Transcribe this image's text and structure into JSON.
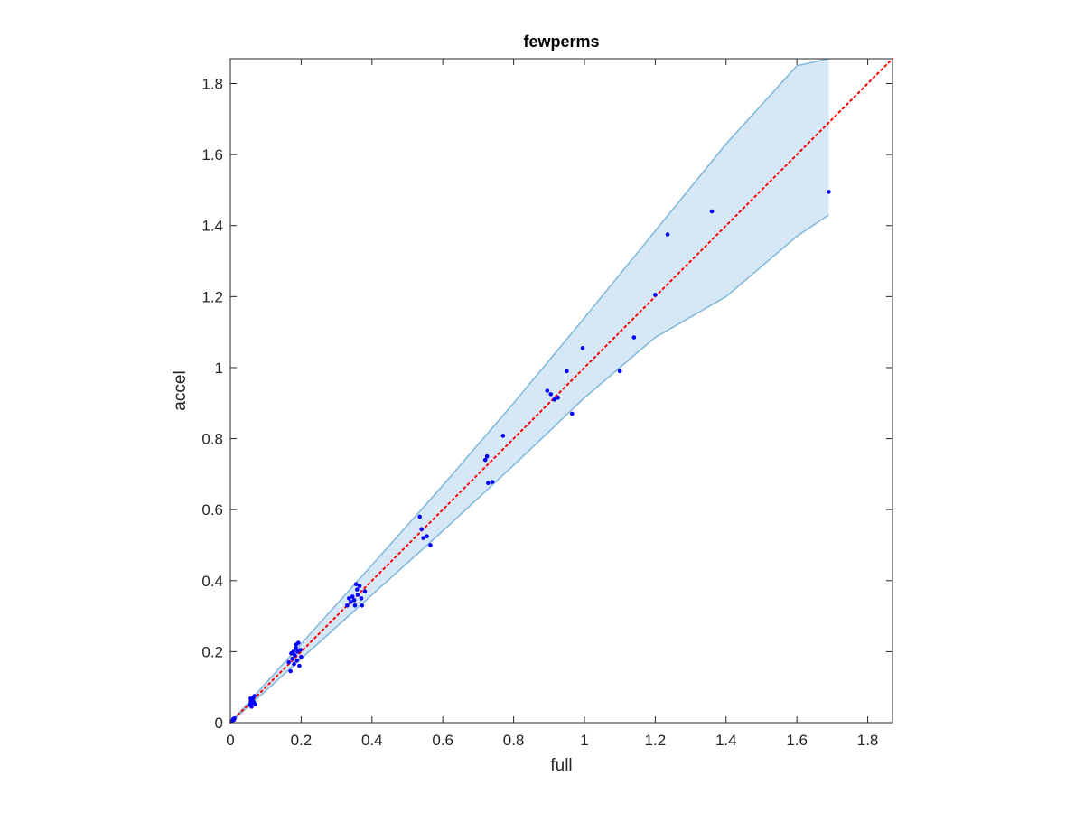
{
  "chart_data": {
    "type": "scatter",
    "title": "fewperms",
    "xlabel": "full",
    "ylabel": "accel",
    "xlim": [
      0,
      1.87
    ],
    "ylim": [
      0,
      1.87
    ],
    "xticks": [
      "0",
      "0.2",
      "0.4",
      "0.6",
      "0.8",
      "1",
      "1.2",
      "1.4",
      "1.6",
      "1.8"
    ],
    "yticks": [
      "0",
      "0.2",
      "0.4",
      "0.6",
      "0.8",
      "1",
      "1.2",
      "1.4",
      "1.6",
      "1.8"
    ],
    "grid": false,
    "reference_line": {
      "style": "dotted",
      "color": "#ff0000",
      "from": [
        0,
        0
      ],
      "to": [
        1.87,
        1.87
      ]
    },
    "band": {
      "color": "#d6e8f5",
      "edge_color": "#86b9dc",
      "upper": [
        [
          0,
          0
        ],
        [
          0.2,
          0.222
        ],
        [
          0.4,
          0.444
        ],
        [
          0.6,
          0.668
        ],
        [
          0.8,
          0.9
        ],
        [
          1.0,
          1.14
        ],
        [
          1.2,
          1.385
        ],
        [
          1.4,
          1.63
        ],
        [
          1.6,
          1.85
        ],
        [
          1.69,
          1.87
        ]
      ],
      "lower": [
        [
          0,
          0
        ],
        [
          0.2,
          0.18
        ],
        [
          0.4,
          0.36
        ],
        [
          0.6,
          0.54
        ],
        [
          0.8,
          0.725
        ],
        [
          1.0,
          0.915
        ],
        [
          1.2,
          1.085
        ],
        [
          1.4,
          1.2
        ],
        [
          1.6,
          1.37
        ],
        [
          1.69,
          1.43
        ]
      ],
      "x_end": 1.69
    },
    "series": [
      {
        "marker_color": "#0000ff",
        "points": [
          [
            0.005,
            0.005
          ],
          [
            0.008,
            0.01
          ],
          [
            0.01,
            0.008
          ],
          [
            0.012,
            0.012
          ],
          [
            0.055,
            0.05
          ],
          [
            0.058,
            0.06
          ],
          [
            0.06,
            0.055
          ],
          [
            0.062,
            0.065
          ],
          [
            0.064,
            0.07
          ],
          [
            0.066,
            0.058
          ],
          [
            0.068,
            0.075
          ],
          [
            0.06,
            0.045
          ],
          [
            0.07,
            0.052
          ],
          [
            0.057,
            0.068
          ],
          [
            0.165,
            0.17
          ],
          [
            0.17,
            0.145
          ],
          [
            0.175,
            0.18
          ],
          [
            0.178,
            0.2
          ],
          [
            0.18,
            0.165
          ],
          [
            0.182,
            0.19
          ],
          [
            0.185,
            0.21
          ],
          [
            0.188,
            0.175
          ],
          [
            0.19,
            0.2
          ],
          [
            0.192,
            0.225
          ],
          [
            0.195,
            0.16
          ],
          [
            0.198,
            0.205
          ],
          [
            0.2,
            0.185
          ],
          [
            0.186,
            0.22
          ],
          [
            0.172,
            0.195
          ],
          [
            0.33,
            0.33
          ],
          [
            0.335,
            0.35
          ],
          [
            0.34,
            0.34
          ],
          [
            0.345,
            0.355
          ],
          [
            0.35,
            0.345
          ],
          [
            0.352,
            0.33
          ],
          [
            0.355,
            0.39
          ],
          [
            0.358,
            0.375
          ],
          [
            0.36,
            0.36
          ],
          [
            0.365,
            0.385
          ],
          [
            0.37,
            0.35
          ],
          [
            0.372,
            0.33
          ],
          [
            0.38,
            0.37
          ],
          [
            0.535,
            0.58
          ],
          [
            0.54,
            0.545
          ],
          [
            0.545,
            0.52
          ],
          [
            0.555,
            0.525
          ],
          [
            0.565,
            0.5
          ],
          [
            0.72,
            0.74
          ],
          [
            0.725,
            0.75
          ],
          [
            0.728,
            0.675
          ],
          [
            0.74,
            0.678
          ],
          [
            0.77,
            0.808
          ],
          [
            0.895,
            0.935
          ],
          [
            0.905,
            0.925
          ],
          [
            0.915,
            0.91
          ],
          [
            0.925,
            0.915
          ],
          [
            0.95,
            0.99
          ],
          [
            0.965,
            0.87
          ],
          [
            0.995,
            1.055
          ],
          [
            1.1,
            0.99
          ],
          [
            1.14,
            1.085
          ],
          [
            1.2,
            1.205
          ],
          [
            1.235,
            1.375
          ],
          [
            1.36,
            1.44
          ],
          [
            1.69,
            1.495
          ]
        ]
      }
    ]
  }
}
